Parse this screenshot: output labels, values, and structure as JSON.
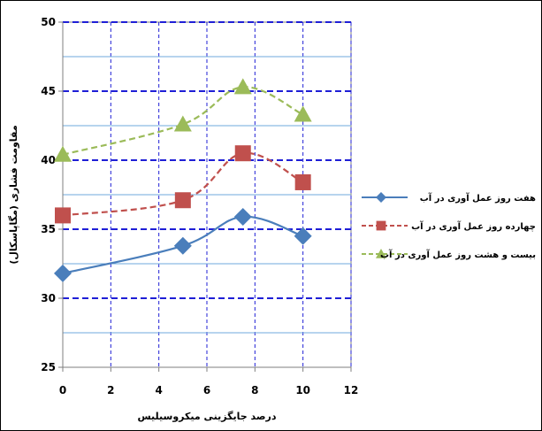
{
  "chart_data": {
    "type": "line",
    "xlabel": "درصد جایگزینی میکروسیلیس",
    "ylabel": "مقاومت فشاری (مگاپاسکال)",
    "xlim": [
      0,
      12
    ],
    "ylim": [
      25,
      50
    ],
    "x_ticks": [
      0,
      2,
      4,
      6,
      8,
      10,
      12
    ],
    "y_ticks": [
      25,
      30,
      35,
      40,
      45,
      50
    ],
    "x_ticks_labels": [
      "0",
      "2",
      "4",
      "6",
      "8",
      "10",
      "12"
    ],
    "y_ticks_labels": [
      "25",
      "30",
      "35",
      "40",
      "45",
      "50"
    ],
    "grid": true,
    "legend_position": "right",
    "series": [
      {
        "name": "هفت روز عمل آوری در آب",
        "x": [
          0,
          5,
          7.5,
          10
        ],
        "values": [
          31.8,
          33.8,
          35.9,
          34.5
        ],
        "color": "#4a7ebb",
        "line_style": "solid",
        "marker": "diamond"
      },
      {
        "name": "چهارده روز عمل آوری در آب",
        "x": [
          0,
          5,
          7.5,
          10
        ],
        "values": [
          36.0,
          37.1,
          40.5,
          38.4
        ],
        "color": "#c0504d",
        "line_style": "dashed",
        "marker": "square"
      },
      {
        "name": "بیست و هشت روز عمل آوری در آب",
        "x": [
          0,
          5,
          7.5,
          10
        ],
        "values": [
          40.4,
          42.6,
          45.3,
          43.3
        ],
        "color": "#9bbb59",
        "line_style": "dashed",
        "marker": "triangle"
      }
    ]
  }
}
